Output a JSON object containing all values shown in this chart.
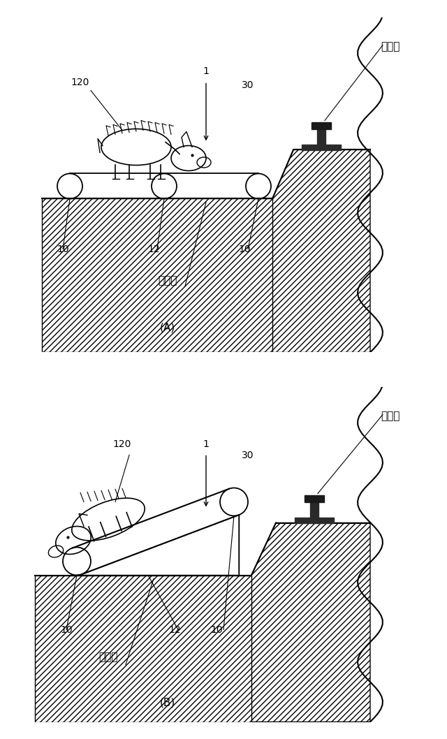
{
  "bg_color": "#ffffff",
  "lc": "#000000",
  "label_A": "(A)",
  "label_B": "(B)",
  "rail_label": "レール",
  "label_120": "120",
  "label_1": "1",
  "label_30": "30",
  "label_10": "10",
  "label_12": "12",
  "label_setchi": "設置面",
  "fs": 10,
  "fs_caption": 11,
  "fs_rail": 11
}
